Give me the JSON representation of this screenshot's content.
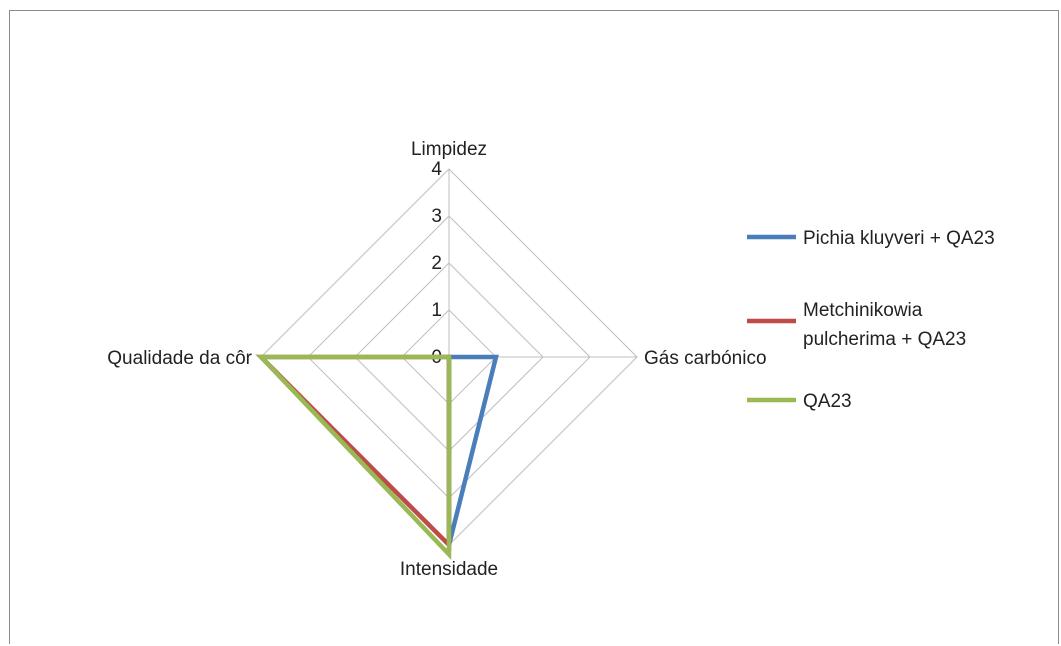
{
  "chart_data": {
    "type": "radar",
    "categories": [
      "Limpidez",
      "Gás carbónico",
      "Intensidade",
      "Qualidade da côr"
    ],
    "ticks": [
      "0",
      "1",
      "2",
      "3",
      "4"
    ],
    "rlim": [
      0,
      4
    ],
    "grid": true,
    "legend_position": "right",
    "series": [
      {
        "name": "Pichia kluyveri + QA23",
        "color": "#4a7ebb",
        "values": [
          0,
          1,
          4,
          0
        ]
      },
      {
        "name": "Metchinikowia pulcherima + QA23",
        "color": "#be4b48",
        "values": [
          0,
          0,
          4,
          4
        ]
      },
      {
        "name": "QA23",
        "color": "#98b954",
        "values": [
          0,
          0,
          4.2,
          4
        ]
      }
    ],
    "legend_lines": [
      [
        "Pichia kluyveri + QA23"
      ],
      [
        "Metchinikowia",
        "pulcherima + QA23"
      ],
      [
        "QA23"
      ]
    ]
  }
}
